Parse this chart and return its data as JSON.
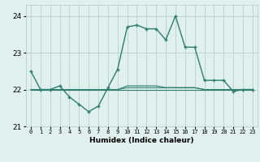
{
  "xlabel": "Humidex (Indice chaleur)",
  "x_values": [
    0,
    1,
    2,
    3,
    4,
    5,
    6,
    7,
    8,
    9,
    10,
    11,
    12,
    13,
    14,
    15,
    16,
    17,
    18,
    19,
    20,
    21,
    22,
    23
  ],
  "main_line": [
    22.5,
    22.0,
    22.0,
    22.1,
    21.8,
    21.6,
    21.4,
    21.55,
    22.05,
    22.55,
    23.7,
    23.75,
    23.65,
    23.65,
    23.35,
    24.0,
    23.15,
    23.15,
    22.25,
    22.25,
    22.25,
    21.95,
    22.0,
    22.0
  ],
  "flat_line1": [
    22.0,
    22.0,
    22.0,
    22.0,
    22.0,
    22.0,
    22.0,
    22.0,
    22.0,
    22.0,
    22.0,
    22.0,
    22.0,
    22.0,
    22.0,
    22.0,
    22.0,
    22.0,
    22.0,
    22.0,
    22.0,
    22.0,
    22.0,
    22.0
  ],
  "flat_line2": [
    22.0,
    22.0,
    22.0,
    22.0,
    22.0,
    22.0,
    22.0,
    22.0,
    22.0,
    22.0,
    22.05,
    22.05,
    22.05,
    22.05,
    22.05,
    22.05,
    22.05,
    22.05,
    22.0,
    22.0,
    22.0,
    22.0,
    22.0,
    22.0
  ],
  "flat_line3": [
    22.0,
    22.0,
    22.0,
    22.0,
    22.0,
    22.0,
    22.0,
    22.0,
    22.0,
    22.0,
    22.1,
    22.1,
    22.1,
    22.1,
    22.05,
    22.05,
    22.05,
    22.05,
    22.0,
    22.0,
    22.0,
    22.0,
    22.0,
    22.0
  ],
  "line_color": "#2e7d6e",
  "bg_color": "#dff0ee",
  "grid_color": "#b0ccc8",
  "ylim": [
    21.0,
    24.3
  ],
  "yticks": [
    21,
    22,
    23,
    24
  ],
  "xlim": [
    -0.5,
    23.5
  ]
}
